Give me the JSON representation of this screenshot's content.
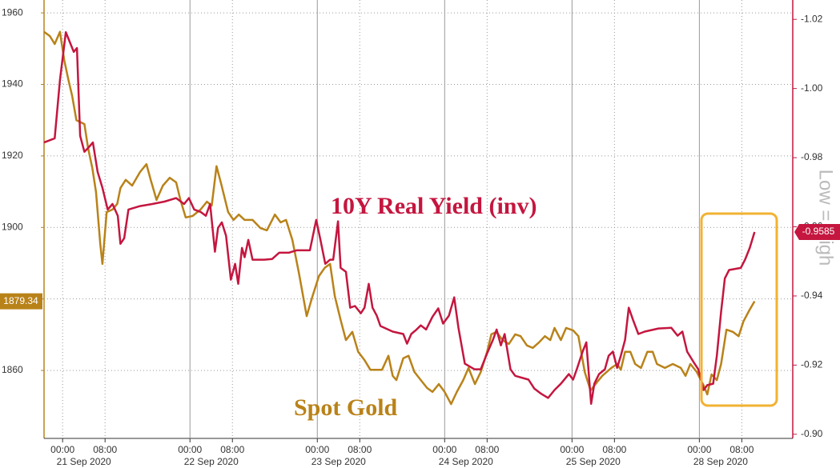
{
  "chart_data": {
    "type": "line",
    "xlim": [
      -3.5,
      137.6
    ],
    "xticks": [
      {
        "value": 0,
        "label": "00:00"
      },
      {
        "value": 8,
        "label": "08:00"
      },
      {
        "value": 24,
        "label": "00:00"
      },
      {
        "value": 32,
        "label": "08:00"
      },
      {
        "value": 48,
        "label": "00:00"
      },
      {
        "value": 56,
        "label": "08:00"
      },
      {
        "value": 72,
        "label": "00:00"
      },
      {
        "value": 80,
        "label": "08:00"
      },
      {
        "value": 96,
        "label": "00:00"
      },
      {
        "value": 104,
        "label": "08:00"
      },
      {
        "value": 120,
        "label": "00:00"
      },
      {
        "value": 128,
        "label": "08:00"
      }
    ],
    "day_labels": [
      {
        "value": 4,
        "label": "21 Sep 2020"
      },
      {
        "value": 28,
        "label": "22 Sep 2020"
      },
      {
        "value": 52,
        "label": "23 Sep 2020"
      },
      {
        "value": 76,
        "label": "24 Sep 2020"
      },
      {
        "value": 100,
        "label": "25 Sep 2020"
      },
      {
        "value": 124,
        "label": "28 Sep 2020"
      }
    ],
    "ylim": [
      1841,
      1963.6
    ],
    "yticks": [
      1860,
      1880,
      1900,
      1920,
      1940,
      1960
    ],
    "y2lim": [
      -1.0256,
      -0.8988
    ],
    "y2_inverted": true,
    "y2ticks": [
      {
        "value": -1.02,
        "label": "-1.02"
      },
      {
        "value": -1.0,
        "label": "-1.00"
      },
      {
        "value": -0.98,
        "label": "-0.98"
      },
      {
        "value": -0.96,
        "label": "-0.96"
      },
      {
        "value": -0.94,
        "label": "-0.94"
      },
      {
        "value": -0.92,
        "label": "-0.92"
      },
      {
        "value": -0.9,
        "label": "-0.90"
      }
    ],
    "grid": true,
    "annotations": [
      {
        "text": "10Y Real Yield (inv)"
      },
      {
        "text": "Spot Gold"
      },
      {
        "text": "Low = High"
      }
    ],
    "series": [
      {
        "name": "Spot Gold",
        "color": "#b98219",
        "x": [
          -3.5,
          -2.4,
          -1.5,
          -0.5,
          0.3,
          1.1,
          1.8,
          2.6,
          4.1,
          4.8,
          5.6,
          6.3,
          7.1,
          7.5,
          8.3,
          9.4,
          10.3,
          10.9,
          11.9,
          13.1,
          14.6,
          15.8,
          16.6,
          17.7,
          18.9,
          20.2,
          21.4,
          22.2,
          23.2,
          24.5,
          26,
          27.2,
          28.1,
          29,
          29.9,
          31.2,
          32.2,
          33.2,
          34.3,
          35.8,
          37.3,
          38.5,
          40,
          41.1,
          42.1,
          43.3,
          44.5,
          46,
          47.1,
          48.3,
          49.4,
          50.4,
          51.3,
          52.4,
          53.4,
          54.6,
          55.7,
          56.9,
          58,
          60.2,
          61.4,
          62.2,
          62.9,
          64.2,
          65.2,
          66.3,
          67.5,
          68.7,
          69.7,
          70.9,
          72,
          73.2,
          74.3,
          75.5,
          76.5,
          77.7,
          78.8,
          80,
          80.8,
          81.8,
          82.9,
          84.1,
          85.3,
          86.3,
          87.5,
          88.6,
          89.8,
          90.9,
          91.9,
          92.7,
          93.9,
          94.9,
          96.2,
          97.2,
          98.4,
          99.5,
          100.7,
          101.7,
          103.4,
          104.5,
          105.2,
          106,
          107,
          107.9,
          109,
          110.2,
          111.2,
          112,
          113.5,
          115,
          116.5,
          117.4,
          118.3,
          119.5,
          120.8,
          121.5,
          122.3,
          123.3,
          124.1,
          125.1,
          126.3,
          127.4,
          128.3,
          129.4,
          130.4
        ],
        "values": [
          1954.7,
          1953.5,
          1951.3,
          1954.7,
          1946.8,
          1941.2,
          1936.8,
          1930.0,
          1928.9,
          1922.2,
          1916.6,
          1909.9,
          1895.4,
          1889.8,
          1904.3,
          1905.0,
          1906.6,
          1911.0,
          1913.3,
          1911.7,
          1915.5,
          1917.7,
          1913.3,
          1907.7,
          1911.7,
          1913.9,
          1912.6,
          1907.7,
          1902.8,
          1903.2,
          1905.0,
          1907.2,
          1906.1,
          1917.1,
          1912.1,
          1904.3,
          1902.1,
          1903.6,
          1902.1,
          1902.1,
          1899.8,
          1899.2,
          1903.6,
          1901.4,
          1902.1,
          1896.5,
          1887.5,
          1875.2,
          1880.8,
          1886.4,
          1888.7,
          1889.8,
          1880.8,
          1874.1,
          1868.5,
          1870.8,
          1865.2,
          1862.9,
          1860.2,
          1860.2,
          1864.1,
          1858.5,
          1857.3,
          1863.4,
          1864.1,
          1859.6,
          1857.3,
          1855.1,
          1854.0,
          1856.2,
          1854.0,
          1850.6,
          1854.0,
          1857.3,
          1860.7,
          1856.2,
          1859.6,
          1865.2,
          1870.1,
          1870.8,
          1868.5,
          1867.4,
          1870.1,
          1869.6,
          1867.0,
          1866.3,
          1867.9,
          1869.6,
          1868.5,
          1871.9,
          1868.5,
          1871.9,
          1871.2,
          1869.6,
          1859.6,
          1854.4,
          1856.7,
          1858.5,
          1860.7,
          1861.8,
          1860.2,
          1865.2,
          1865.2,
          1861.8,
          1860.7,
          1865.2,
          1865.2,
          1861.8,
          1860.7,
          1861.8,
          1860.7,
          1858.5,
          1861.8,
          1859.6,
          1855.8,
          1853.3,
          1858.9,
          1857.3,
          1861.8,
          1871.4,
          1870.8,
          1869.6,
          1873.7,
          1876.8,
          1879.34
        ]
      },
      {
        "name": "10Y Real Yield (inv)",
        "color": "#c4163f",
        "axis": "y2",
        "x": [
          -3.5,
          -1.5,
          -0.5,
          0.6,
          1.5,
          2.1,
          2.7,
          3.3,
          4.1,
          4.8,
          5.7,
          6.6,
          7.5,
          8.5,
          9.4,
          10.4,
          10.9,
          11.6,
          12.4,
          14.6,
          16.9,
          19.2,
          21.4,
          22.9,
          23.8,
          24.8,
          26,
          27,
          27.8,
          28.7,
          29.3,
          30,
          30.8,
          31.7,
          32.5,
          33.1,
          33.8,
          34.3,
          35,
          35.8,
          38,
          39.5,
          40.8,
          42.6,
          44.1,
          46.6,
          47.8,
          48.6,
          49.5,
          50.4,
          51,
          51.9,
          52.4,
          53.4,
          54.2,
          55.1,
          56.2,
          56.9,
          57.7,
          58.4,
          59.2,
          59.9,
          62.2,
          64.2,
          64.9,
          65.7,
          66.7,
          67.5,
          68.5,
          69.7,
          70.8,
          71.7,
          72.8,
          73.8,
          74.6,
          75.8,
          77.6,
          78.8,
          80,
          81.1,
          81.8,
          82.6,
          83.3,
          84.4,
          85.3,
          87.8,
          88.9,
          90.1,
          91.5,
          92.7,
          93.9,
          95.4,
          96.2,
          96.9,
          98,
          98.7,
          99.6,
          100.2,
          101.1,
          102.2,
          102.9,
          103.7,
          104.5,
          105.2,
          106,
          106.7,
          107.5,
          108.5,
          109.7,
          112.3,
          114.7,
          115.9,
          116.8,
          117.7,
          119.1,
          119.8,
          120.8,
          121.5,
          122.6,
          123.3,
          124.1,
          124.8,
          125.6,
          127.8,
          128.6,
          129.5,
          130.4
        ],
        "values": [
          -0.9844,
          -0.9856,
          -1.0025,
          -1.0163,
          -1.0129,
          -1.0106,
          -1.0117,
          -0.9863,
          -0.9817,
          -0.9828,
          -0.9844,
          -0.9759,
          -0.9713,
          -0.965,
          -0.9666,
          -0.9632,
          -0.9551,
          -0.9567,
          -0.965,
          -0.966,
          -0.9666,
          -0.9673,
          -0.9683,
          -0.9666,
          -0.9683,
          -0.965,
          -0.9643,
          -0.9632,
          -0.9666,
          -0.9528,
          -0.9597,
          -0.9613,
          -0.9574,
          -0.9447,
          -0.9493,
          -0.9435,
          -0.9539,
          -0.9512,
          -0.9562,
          -0.9505,
          -0.9505,
          -0.9507,
          -0.9525,
          -0.9525,
          -0.9532,
          -0.9532,
          -0.962,
          -0.9562,
          -0.9493,
          -0.9505,
          -0.9505,
          -0.9616,
          -0.9481,
          -0.947,
          -0.9366,
          -0.9371,
          -0.935,
          -0.9366,
          -0.9435,
          -0.9366,
          -0.9343,
          -0.9313,
          -0.9297,
          -0.929,
          -0.9262,
          -0.929,
          -0.9303,
          -0.9315,
          -0.9303,
          -0.934,
          -0.9364,
          -0.932,
          -0.9343,
          -0.9396,
          -0.9308,
          -0.9204,
          -0.9188,
          -0.9188,
          -0.9234,
          -0.9273,
          -0.9303,
          -0.9257,
          -0.929,
          -0.9188,
          -0.9169,
          -0.9158,
          -0.9132,
          -0.9118,
          -0.9105,
          -0.9128,
          -0.9146,
          -0.9174,
          -0.9158,
          -0.9188,
          -0.9239,
          -0.9266,
          -0.9088,
          -0.9146,
          -0.9174,
          -0.9188,
          -0.9227,
          -0.9239,
          -0.9192,
          -0.9227,
          -0.9273,
          -0.9366,
          -0.9331,
          -0.929,
          -0.9297,
          -0.9306,
          -0.9308,
          -0.9285,
          -0.9297,
          -0.9239,
          -0.9204,
          -0.9188,
          -0.9128,
          -0.9142,
          -0.9146,
          -0.9227,
          -0.9354,
          -0.9451,
          -0.9475,
          -0.9481,
          -0.9505,
          -0.9539,
          -0.9585
        ]
      }
    ]
  }
}
